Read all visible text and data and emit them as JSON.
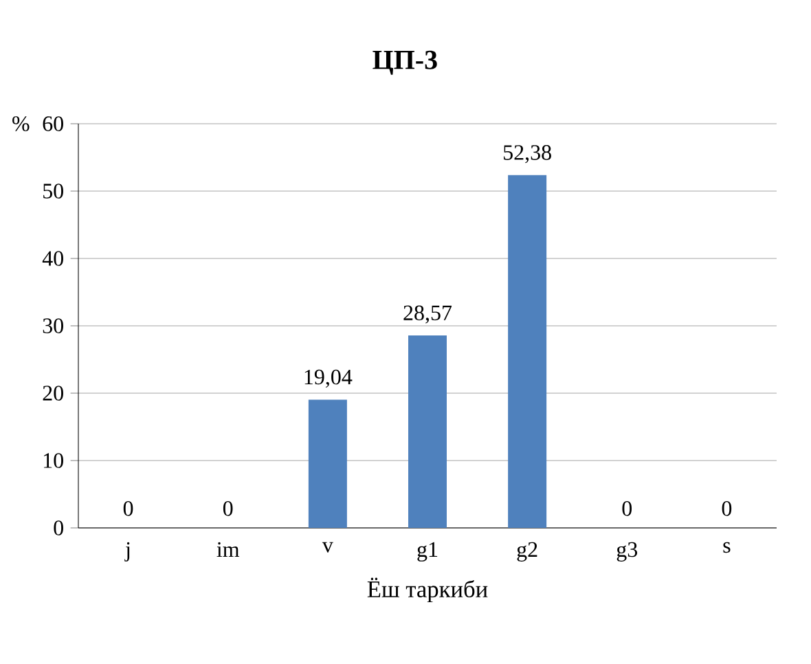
{
  "chart_data": {
    "type": "bar",
    "title": "ЦП-3",
    "xlabel": "Ёш таркиби",
    "ylabel": "%",
    "categories": [
      "j",
      "im",
      "v",
      "g1",
      "g2",
      "g3",
      "s"
    ],
    "values": [
      0,
      0,
      19.04,
      28.57,
      52.38,
      0,
      0
    ],
    "value_labels": [
      "0",
      "0",
      "19,04",
      "28,57",
      "52,38",
      "0",
      "0"
    ],
    "color": "#4f81bd",
    "ylim": [
      0,
      60
    ],
    "yticks": [
      0,
      10,
      20,
      30,
      40,
      50,
      60
    ],
    "grid": "y"
  }
}
